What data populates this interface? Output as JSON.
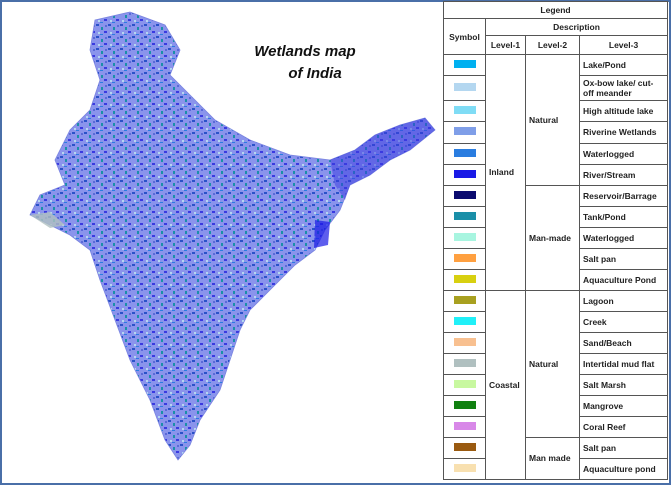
{
  "map": {
    "title_lines": [
      "Wetlands map",
      "of India"
    ]
  },
  "legend": {
    "title": "Legend",
    "symbol_header": "Symbol",
    "description_header": "Description",
    "level_headers": [
      "Level-1",
      "Level-2",
      "Level-3"
    ],
    "groups": [
      {
        "level1": "Inland",
        "subgroups": [
          {
            "level2": "Natural",
            "items": [
              {
                "label": "Lake/Pond",
                "color": "#00b0f0"
              },
              {
                "label": "Ox-bow lake/ cut-off meander",
                "color": "#b4d7f0"
              },
              {
                "label": "High altitude lake",
                "color": "#7fdcf5"
              },
              {
                "label": "Riverine Wetlands",
                "color": "#7f9ee8"
              },
              {
                "label": "Waterlogged",
                "color": "#2a7de0"
              },
              {
                "label": "River/Stream",
                "color": "#1a1ae6"
              }
            ]
          },
          {
            "level2": "Man-made",
            "items": [
              {
                "label": "Reservoir/Barrage",
                "color": "#0a0a6e"
              },
              {
                "label": "Tank/Pond",
                "color": "#1a8fa8"
              },
              {
                "label": "Waterlogged",
                "color": "#a8f5e0"
              },
              {
                "label": "Salt pan",
                "color": "#ffa040"
              },
              {
                "label": "Aquaculture Pond",
                "color": "#d8d010"
              }
            ]
          }
        ]
      },
      {
        "level1": "Coastal",
        "subgroups": [
          {
            "level2": "Natural",
            "items": [
              {
                "label": "Lagoon",
                "color": "#a8a020"
              },
              {
                "label": "Creek",
                "color": "#20f0f8"
              },
              {
                "label": "Sand/Beach",
                "color": "#f8c090"
              },
              {
                "label": "Intertidal mud flat",
                "color": "#b0c0c0"
              },
              {
                "label": "Salt Marsh",
                "color": "#c8f8a0"
              },
              {
                "label": "Mangrove",
                "color": "#108010"
              },
              {
                "label": "Coral Reef",
                "color": "#d888e8"
              }
            ]
          },
          {
            "level2": "Man made",
            "items": [
              {
                "label": "Salt pan",
                "color": "#9a5a10"
              },
              {
                "label": "Aquaculture pond",
                "color": "#f8e0b0"
              }
            ]
          }
        ]
      }
    ]
  }
}
